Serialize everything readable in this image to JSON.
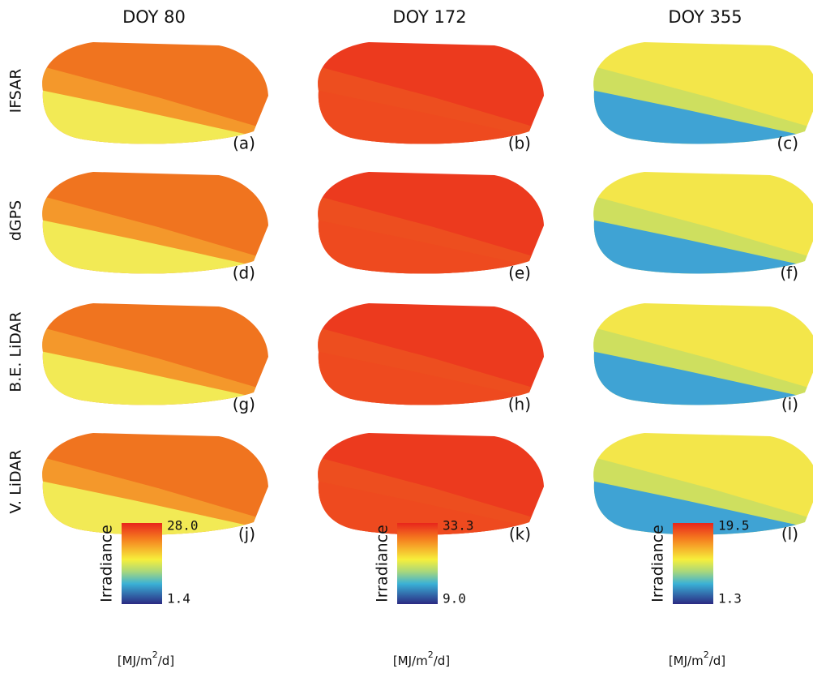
{
  "rows": [
    "IFSAR",
    "dGPS",
    "B.E. LiDAR",
    "V. LiDAR"
  ],
  "columns": [
    {
      "title": "DOY 80",
      "panels": [
        "(a)",
        "(d)",
        "(g)",
        "(j)"
      ],
      "colorbar": {
        "label": "Irradiance",
        "max": "28.0",
        "min": "1.4",
        "unit": [
          "[MJ/m",
          "2",
          "/d]"
        ]
      }
    },
    {
      "title": "DOY 172",
      "panels": [
        "(b)",
        "(e)",
        "(h)",
        "(k)"
      ],
      "colorbar": {
        "label": "Irradiance",
        "max": "33.3",
        "min": "9.0",
        "unit": [
          "[MJ/m",
          "2",
          "/d]"
        ]
      }
    },
    {
      "title": "DOY 355",
      "panels": [
        "(c)",
        "(f)",
        "(i)",
        "(l)"
      ],
      "colorbar": {
        "label": "Irradiance",
        "max": "19.5",
        "min": "1.3",
        "unit": [
          "[MJ/m",
          "2",
          "/d]"
        ]
      }
    }
  ]
}
